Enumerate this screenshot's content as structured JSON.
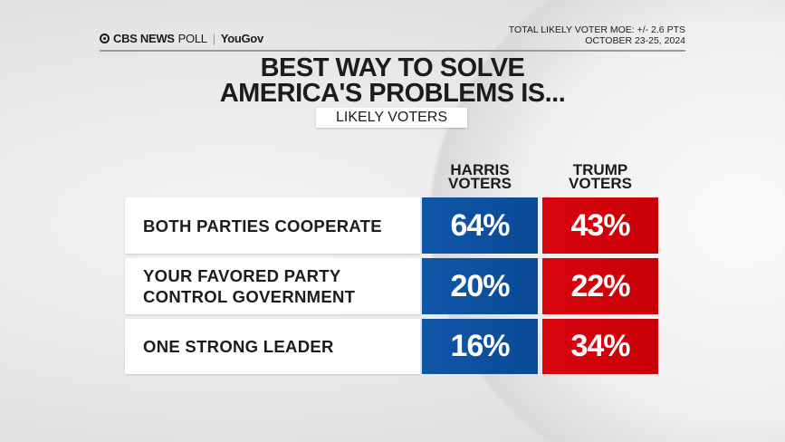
{
  "header": {
    "logo_brand": "CBS NEWS",
    "logo_poll": "POLL",
    "logo_partner": "YouGov",
    "moe": "TOTAL LIKELY VOTER MOE: +/- 2.6 PTS",
    "dates": "OCTOBER 23-25, 2024"
  },
  "colors": {
    "harris": "#0a4f9e",
    "trump": "#d0040c"
  },
  "chart_data": {
    "type": "table",
    "title": "BEST WAY TO SOLVE AMERICA'S PROBLEMS IS...",
    "title_line1": "BEST WAY TO SOLVE",
    "title_line2": "AMERICA'S PROBLEMS IS...",
    "subtitle": "LIKELY VOTERS",
    "columns": [
      {
        "line1": "HARRIS",
        "line2": "VOTERS"
      },
      {
        "line1": "TRUMP",
        "line2": "VOTERS"
      }
    ],
    "rows": [
      {
        "label": "BOTH PARTIES COOPERATE",
        "label2": "",
        "harris": "64%",
        "trump": "43%"
      },
      {
        "label": "YOUR FAVORED PARTY",
        "label2": "CONTROL GOVERNMENT",
        "harris": "20%",
        "trump": "22%"
      },
      {
        "label": "ONE STRONG LEADER",
        "label2": "",
        "harris": "16%",
        "trump": "34%"
      }
    ]
  }
}
